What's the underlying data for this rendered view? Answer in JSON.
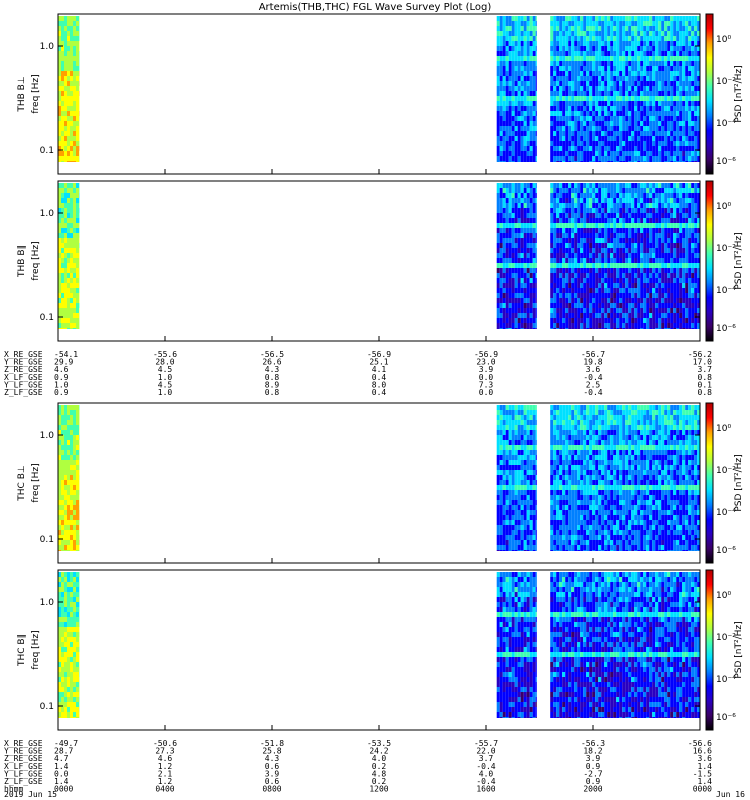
{
  "chart_data": {
    "type": "heatmap",
    "title": "Artemis(THB,THC) FGL Wave Survey Plot (Log)",
    "date_start": "2019 Jun 15",
    "date_end": "Jun 16",
    "colorbar_unit_label": "PSD [nT²/Hz]",
    "colorbar_ticks": [
      "10⁰",
      "10⁻²",
      "10⁻⁴",
      "10⁻⁶"
    ],
    "colormap": [
      "#000000",
      "#3a0066",
      "#2a00c0",
      "#0000ff",
      "#0080ff",
      "#00e0ff",
      "#40ffb0",
      "#b0ff40",
      "#ffff00",
      "#ffa000",
      "#ff0000",
      "#b00000"
    ],
    "panels": [
      {
        "probe": "THB",
        "ylabel": "THB B⊥",
        "unit": "freq [Hz]",
        "yticks": [
          "1.0",
          "0.1"
        ],
        "yscale": "log"
      },
      {
        "probe": "THB",
        "ylabel": "THB B∥",
        "unit": "freq [Hz]",
        "yticks": [
          "1.0",
          "0.1"
        ],
        "yscale": "log"
      },
      {
        "probe": "THC",
        "ylabel": "THC B⊥",
        "unit": "freq [Hz]",
        "yticks": [
          "1.0",
          "0.1"
        ],
        "yscale": "log"
      },
      {
        "probe": "THC",
        "ylabel": "THC B∥",
        "unit": "freq [Hz]",
        "yticks": [
          "1.0",
          "0.1"
        ],
        "yscale": "log"
      }
    ],
    "data_coverage_hours": [
      [
        0.0,
        0.8
      ],
      [
        16.4,
        17.9
      ],
      [
        18.4,
        24.0
      ]
    ],
    "x_tick_hours": [
      0,
      4,
      8,
      12,
      16,
      20,
      24
    ],
    "ephemeris_thb": [
      {
        "label": "X_RE_GSE",
        "values": [
          "-54.1",
          "-55.6",
          "-56.5",
          "-56.9",
          "-56.9",
          "-56.7",
          "-56.2"
        ]
      },
      {
        "label": "Y_RE_GSE",
        "values": [
          "29.9",
          "28.0",
          "26.6",
          "25.1",
          "23.0",
          "19.8",
          "17.0"
        ]
      },
      {
        "label": "Z_RE_GSE",
        "values": [
          "4.6",
          "4.5",
          "4.3",
          "4.1",
          "3.9",
          "3.6",
          "3.7"
        ]
      },
      {
        "label": "X_LF_GSE",
        "values": [
          "0.9",
          "1.0",
          "0.8",
          "0.4",
          "0.0",
          "-0.4",
          "0.8"
        ]
      },
      {
        "label": "Y_LF_GSE",
        "values": [
          "1.0",
          "4.5",
          "8.9",
          "8.0",
          "7.3",
          "2.5",
          "0.1"
        ]
      },
      {
        "label": "Z_LF_GSE",
        "values": [
          "0.9",
          "1.0",
          "0.8",
          "0.4",
          "0.0",
          "-0.4",
          "0.8"
        ]
      }
    ],
    "ephemeris_thc": [
      {
        "label": "X_RE_GSE",
        "values": [
          "-49.7",
          "-50.6",
          "-51.8",
          "-53.5",
          "-55.7",
          "-56.3",
          "-56.6"
        ]
      },
      {
        "label": "Y_RE_GSE",
        "values": [
          "28.7",
          "27.3",
          "25.8",
          "24.2",
          "22.0",
          "18.2",
          "16.6"
        ]
      },
      {
        "label": "Z_RE_GSE",
        "values": [
          "4.7",
          "4.6",
          "4.3",
          "4.0",
          "3.7",
          "3.9",
          "3.6"
        ]
      },
      {
        "label": "X_LF_GSE",
        "values": [
          "1.4",
          "1.2",
          "0.6",
          "0.2",
          "-0.4",
          "0.9",
          "1.4"
        ]
      },
      {
        "label": "Y_LF_GSE",
        "values": [
          "0.0",
          "2.1",
          "3.9",
          "4.8",
          "4.0",
          "-2.7",
          "-1.5"
        ]
      },
      {
        "label": "Z_LF_GSE",
        "values": [
          "1.4",
          "1.2",
          "0.6",
          "0.2",
          "-0.4",
          "0.9",
          "1.4"
        ]
      },
      {
        "label": "hhmm",
        "values": [
          "0000",
          "0400",
          "0800",
          "1200",
          "1600",
          "2000",
          "0000"
        ]
      }
    ]
  }
}
